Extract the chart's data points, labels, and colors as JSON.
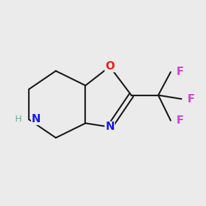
{
  "bg_color": "#ebebeb",
  "bond_color": "#1a1a1a",
  "N_color": "#1a1aee",
  "H_color": "#6aaa99",
  "O_color": "#ee1a1a",
  "F_color": "#cc44cc",
  "O_label": "O",
  "N_label": "N",
  "H_label": "H",
  "F_labels": [
    "F",
    "F",
    "F"
  ],
  "font_size": 11.5,
  "bond_lw": 1.6
}
